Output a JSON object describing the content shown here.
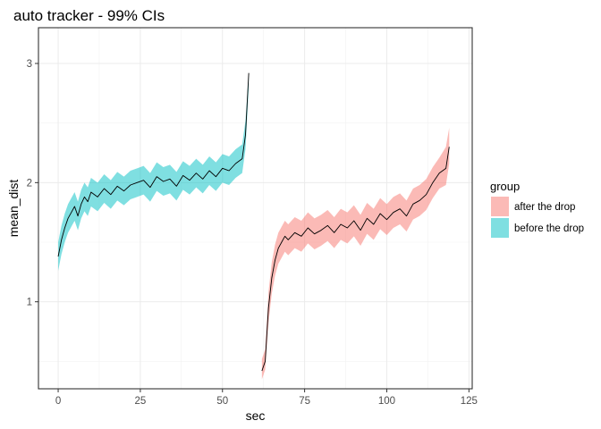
{
  "chart_data": {
    "type": "area",
    "title": "auto tracker - 99% CIs",
    "xlabel": "sec",
    "ylabel": "mean_dist",
    "xlim": [
      -6,
      126
    ],
    "ylim": [
      0.27,
      3.3
    ],
    "x_ticks": [
      0,
      25,
      50,
      75,
      100,
      125
    ],
    "y_ticks": [
      1,
      2,
      3
    ],
    "grid": true,
    "legend": {
      "title": "group",
      "placement": "right",
      "entries": [
        {
          "label": "after the drop",
          "color": "#f8766d"
        },
        {
          "label": "before the drop",
          "color": "#00bfc4"
        }
      ]
    },
    "series": [
      {
        "name": "before the drop",
        "color": "#00bfc4",
        "x": [
          0,
          1,
          2,
          3,
          4,
          5,
          6,
          7,
          8,
          9,
          10,
          12,
          14,
          16,
          18,
          20,
          22,
          24,
          26,
          28,
          30,
          32,
          34,
          36,
          38,
          40,
          42,
          44,
          46,
          48,
          50,
          52,
          54,
          56,
          57,
          58
        ],
        "mean": [
          1.38,
          1.52,
          1.62,
          1.7,
          1.75,
          1.8,
          1.72,
          1.82,
          1.88,
          1.84,
          1.92,
          1.88,
          1.95,
          1.9,
          1.97,
          1.93,
          1.98,
          2.0,
          2.02,
          1.96,
          2.05,
          2.01,
          2.03,
          1.97,
          2.06,
          2.02,
          2.08,
          2.03,
          2.1,
          2.05,
          2.12,
          2.1,
          2.16,
          2.2,
          2.4,
          2.92
        ],
        "lower": [
          1.26,
          1.4,
          1.5,
          1.58,
          1.63,
          1.68,
          1.6,
          1.7,
          1.76,
          1.72,
          1.8,
          1.76,
          1.83,
          1.78,
          1.85,
          1.81,
          1.86,
          1.88,
          1.9,
          1.84,
          1.93,
          1.89,
          1.91,
          1.85,
          1.94,
          1.9,
          1.96,
          1.91,
          1.98,
          1.93,
          2.0,
          1.98,
          2.04,
          2.08,
          2.28,
          2.8
        ],
        "upper": [
          1.5,
          1.64,
          1.74,
          1.82,
          1.87,
          1.92,
          1.84,
          1.94,
          2.0,
          1.96,
          2.04,
          2.0,
          2.07,
          2.02,
          2.09,
          2.05,
          2.1,
          2.12,
          2.14,
          2.08,
          2.17,
          2.13,
          2.15,
          2.09,
          2.18,
          2.14,
          2.2,
          2.15,
          2.22,
          2.17,
          2.24,
          2.22,
          2.28,
          2.32,
          2.52,
          2.92
        ]
      },
      {
        "name": "after the drop",
        "color": "#f8766d",
        "x": [
          62,
          63,
          64,
          65,
          66,
          67,
          68,
          69,
          70,
          72,
          74,
          76,
          78,
          80,
          82,
          84,
          86,
          88,
          90,
          92,
          94,
          96,
          98,
          100,
          102,
          104,
          106,
          108,
          110,
          112,
          114,
          116,
          118,
          119
        ],
        "mean": [
          0.42,
          0.5,
          0.95,
          1.2,
          1.35,
          1.45,
          1.5,
          1.55,
          1.52,
          1.58,
          1.55,
          1.62,
          1.57,
          1.6,
          1.64,
          1.58,
          1.65,
          1.62,
          1.68,
          1.6,
          1.7,
          1.65,
          1.74,
          1.69,
          1.75,
          1.78,
          1.72,
          1.82,
          1.85,
          1.9,
          2.0,
          2.08,
          2.12,
          2.3
        ],
        "lower": [
          0.35,
          0.43,
          0.82,
          1.07,
          1.22,
          1.32,
          1.37,
          1.42,
          1.39,
          1.45,
          1.42,
          1.49,
          1.44,
          1.47,
          1.51,
          1.45,
          1.52,
          1.49,
          1.55,
          1.47,
          1.57,
          1.52,
          1.61,
          1.56,
          1.62,
          1.65,
          1.59,
          1.69,
          1.72,
          1.77,
          1.87,
          1.95,
          1.98,
          2.16
        ],
        "upper": [
          0.52,
          0.6,
          1.08,
          1.33,
          1.48,
          1.58,
          1.63,
          1.68,
          1.65,
          1.71,
          1.68,
          1.75,
          1.7,
          1.73,
          1.77,
          1.71,
          1.78,
          1.75,
          1.81,
          1.73,
          1.83,
          1.78,
          1.87,
          1.82,
          1.88,
          1.91,
          1.85,
          1.95,
          1.98,
          2.03,
          2.13,
          2.21,
          2.3,
          2.46
        ]
      }
    ]
  }
}
